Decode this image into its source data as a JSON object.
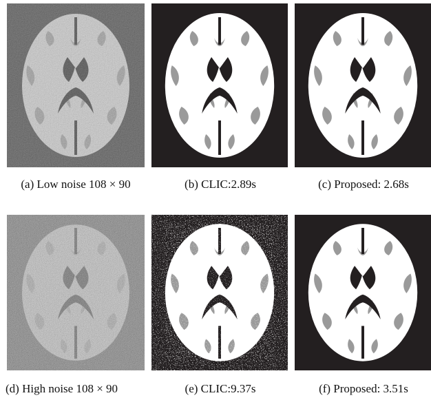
{
  "panels": [
    {
      "label": "(a)",
      "caption": "Low noise 108 × 90"
    },
    {
      "label": "(b)",
      "caption": "CLIC:2.89s"
    },
    {
      "label": "(c)",
      "caption": "Proposed: 2.68s"
    },
    {
      "label": "(d)",
      "caption": "High noise 108 × 90"
    },
    {
      "label": "(e)",
      "caption": "CLIC:9.37s"
    },
    {
      "label": "(f)",
      "caption": "Proposed: 3.51s"
    }
  ]
}
